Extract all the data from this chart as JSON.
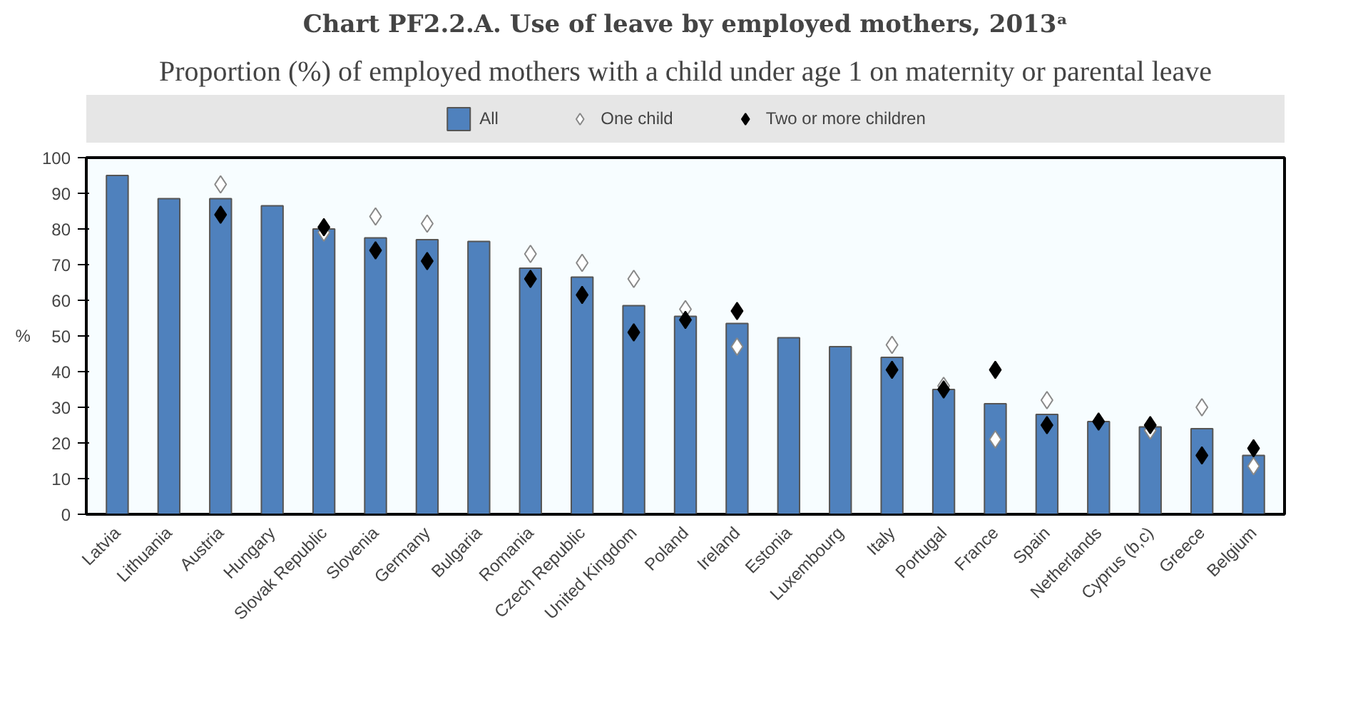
{
  "chart_data": {
    "type": "bar",
    "title": "Chart PF2.2.A. Use of leave by employed mothers, 2013ᵃ",
    "subtitle": "Proportion (%) of employed mothers with a child under age 1 on maternity or parental leave",
    "ylabel": "%",
    "categories": [
      "Latvia",
      "Lithuania",
      "Austria",
      "Hungary",
      "Slovak Republic",
      "Slovenia",
      "Germany",
      "Bulgaria",
      "Romania",
      "Czech Republic",
      "United Kingdom",
      "Poland",
      "Ireland",
      "Estonia",
      "Luxembourg",
      "Italy",
      "Portugal",
      "France",
      "Spain",
      "Netherlands",
      "Cyprus (b,c)",
      "Greece",
      "Belgium"
    ],
    "series": [
      {
        "name": "All",
        "color": "#4f81bd",
        "values": [
          95,
          88.5,
          88.5,
          86.5,
          80,
          77.5,
          77,
          76.5,
          69,
          66.5,
          58.5,
          55.5,
          53.5,
          49.5,
          47,
          44,
          35,
          31,
          28,
          26,
          24.5,
          24,
          16.5
        ]
      },
      {
        "name": "One child",
        "type": "scatter",
        "color": "#ffffff",
        "values": [
          null,
          null,
          92.5,
          null,
          79,
          83.5,
          81.5,
          null,
          73,
          70.5,
          66,
          57.5,
          47,
          null,
          null,
          47.5,
          36,
          21,
          32,
          null,
          23.5,
          30,
          13.5
        ]
      },
      {
        "name": "Two or more children",
        "type": "scatter",
        "color": "#000000",
        "values": [
          null,
          null,
          84,
          null,
          80.5,
          74,
          71,
          null,
          66,
          61.5,
          51,
          54.5,
          57,
          null,
          null,
          40.5,
          35,
          40.5,
          25,
          26,
          25,
          16.5,
          18.5
        ]
      }
    ],
    "ylim": [
      0,
      100
    ],
    "yticks": [
      0,
      10,
      20,
      30,
      40,
      50,
      60,
      70,
      80,
      90,
      100
    ],
    "legend": "top",
    "grid": false,
    "marker": "diamond"
  }
}
